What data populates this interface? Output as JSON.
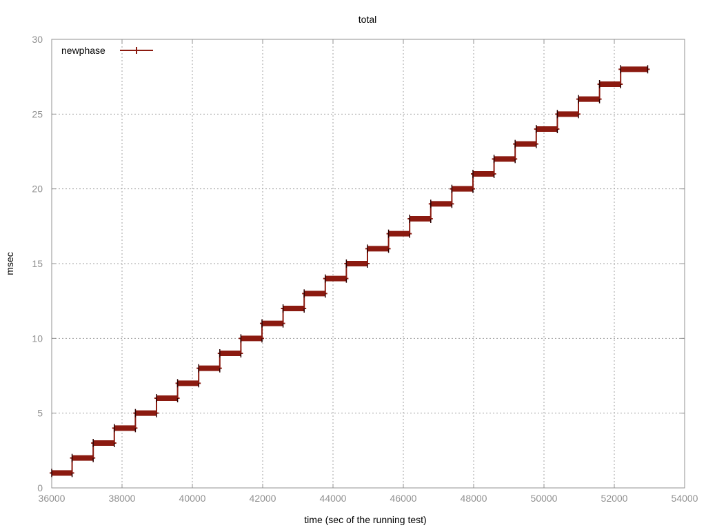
{
  "chart_data": {
    "type": "line",
    "title": "total",
    "xlabel": "time (sec of the running test)",
    "ylabel": "msec",
    "xlim": [
      36000,
      54000
    ],
    "ylim": [
      0,
      30
    ],
    "x_ticks": [
      "36000",
      "38000",
      "40000",
      "42000",
      "44000",
      "46000",
      "48000",
      "50000",
      "52000",
      "54000"
    ],
    "y_ticks": [
      "0",
      "5",
      "10",
      "15",
      "20",
      "25",
      "30"
    ],
    "grid": true,
    "legend_position": "top-left",
    "series": [
      {
        "name": "newphase",
        "color": "#8b1a10",
        "style": "step",
        "points": [
          {
            "x_start": 36000,
            "x_end": 36580,
            "y": 1
          },
          {
            "x_start": 36580,
            "x_end": 37180,
            "y": 2
          },
          {
            "x_start": 37180,
            "x_end": 37780,
            "y": 3
          },
          {
            "x_start": 37780,
            "x_end": 38380,
            "y": 4
          },
          {
            "x_start": 38380,
            "x_end": 38980,
            "y": 5
          },
          {
            "x_start": 38980,
            "x_end": 39580,
            "y": 6
          },
          {
            "x_start": 39580,
            "x_end": 40180,
            "y": 7
          },
          {
            "x_start": 40180,
            "x_end": 40780,
            "y": 8
          },
          {
            "x_start": 40780,
            "x_end": 41380,
            "y": 9
          },
          {
            "x_start": 41380,
            "x_end": 41980,
            "y": 10
          },
          {
            "x_start": 41980,
            "x_end": 42580,
            "y": 11
          },
          {
            "x_start": 42580,
            "x_end": 43180,
            "y": 12
          },
          {
            "x_start": 43180,
            "x_end": 43780,
            "y": 13
          },
          {
            "x_start": 43780,
            "x_end": 44380,
            "y": 14
          },
          {
            "x_start": 44380,
            "x_end": 44980,
            "y": 15
          },
          {
            "x_start": 44980,
            "x_end": 45580,
            "y": 16
          },
          {
            "x_start": 45580,
            "x_end": 46180,
            "y": 17
          },
          {
            "x_start": 46180,
            "x_end": 46780,
            "y": 18
          },
          {
            "x_start": 46780,
            "x_end": 47380,
            "y": 19
          },
          {
            "x_start": 47380,
            "x_end": 47980,
            "y": 20
          },
          {
            "x_start": 47980,
            "x_end": 48580,
            "y": 21
          },
          {
            "x_start": 48580,
            "x_end": 49180,
            "y": 22
          },
          {
            "x_start": 49180,
            "x_end": 49780,
            "y": 23
          },
          {
            "x_start": 49780,
            "x_end": 50380,
            "y": 24
          },
          {
            "x_start": 50380,
            "x_end": 50980,
            "y": 25
          },
          {
            "x_start": 50980,
            "x_end": 51580,
            "y": 26
          },
          {
            "x_start": 51580,
            "x_end": 52180,
            "y": 27
          },
          {
            "x_start": 52180,
            "x_end": 52950,
            "y": 28
          }
        ]
      }
    ]
  }
}
